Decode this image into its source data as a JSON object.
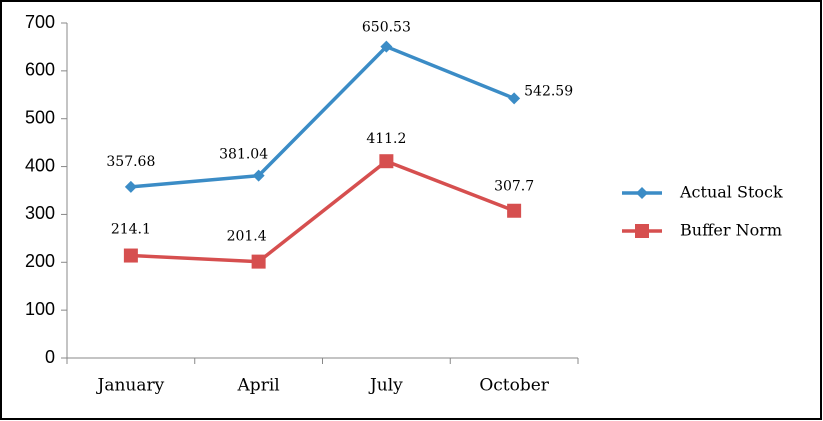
{
  "chart_data": {
    "type": "line",
    "categories": [
      "January",
      "April",
      "July",
      "October"
    ],
    "series": [
      {
        "name": "Actual Stock",
        "color": "#3b8cc6",
        "marker": "diamond",
        "values": [
          357.68,
          381.04,
          650.53,
          542.59
        ]
      },
      {
        "name": "Buffer Norm",
        "color": "#d64f4f",
        "marker": "square",
        "values": [
          214.1,
          201.4,
          411.2,
          307.7
        ]
      }
    ],
    "ylim": [
      0,
      700
    ],
    "yticks": [
      0,
      100,
      200,
      300,
      400,
      500,
      600,
      700
    ],
    "grid": false,
    "legend": "right"
  }
}
